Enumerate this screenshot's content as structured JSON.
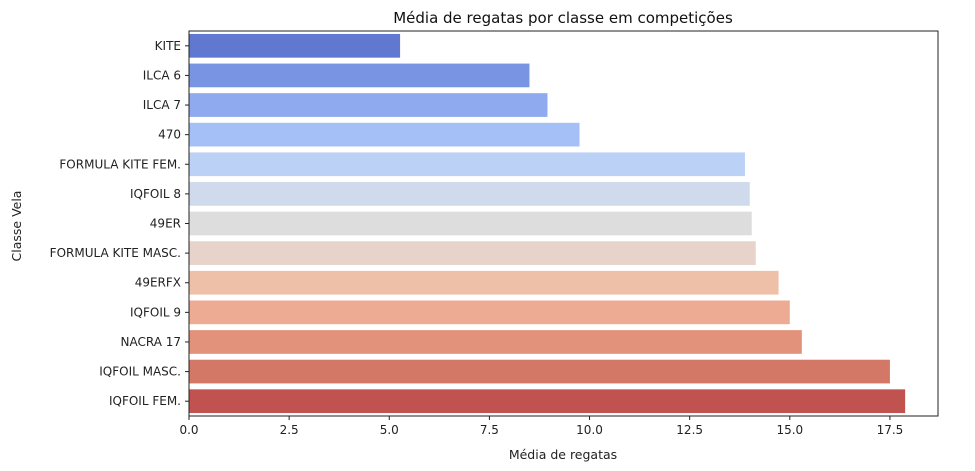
{
  "chart_data": {
    "type": "bar",
    "orientation": "horizontal",
    "title": "Média de regatas por classe em competições",
    "xlabel": "Média de regatas",
    "ylabel": "Classe Vela",
    "xlim": [
      0,
      18.7
    ],
    "xticks": [
      0.0,
      2.5,
      5.0,
      7.5,
      10.0,
      12.5,
      15.0,
      17.5
    ],
    "xtick_labels": [
      "0.0",
      "2.5",
      "5.0",
      "7.5",
      "10.0",
      "12.5",
      "15.0",
      "17.5"
    ],
    "grid": false,
    "legend": "none",
    "categories": [
      "KITE",
      "ILCA 6",
      "ILCA 7",
      "470",
      "FORMULA KITE FEM.",
      "IQFOIL 8",
      "49ER",
      "FORMULA KITE MASC.",
      "49ERFX",
      "IQFOIL 9",
      "NACRA 17",
      "IQFOIL MASC.",
      "IQFOIL FEM."
    ],
    "values": [
      5.27,
      8.5,
      8.95,
      9.75,
      13.88,
      14.0,
      14.05,
      14.15,
      14.72,
      15.0,
      15.3,
      17.5,
      17.88
    ],
    "colors": [
      "#6078d0",
      "#7894e2",
      "#90aaef",
      "#a5c0f7",
      "#bbd1f6",
      "#cfdbed",
      "#dddddd",
      "#e8d3ca",
      "#efc0a8",
      "#ecab92",
      "#e2917a",
      "#d37767",
      "#c0524f"
    ]
  }
}
